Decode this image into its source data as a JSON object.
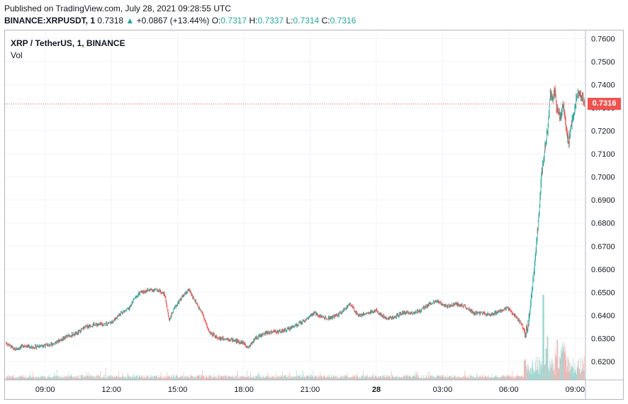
{
  "header": {
    "published": "Published on TradingView.com, July 28, 2021 09:28:55 UTC",
    "symbol": "BINANCE:XRPUSDT, 1",
    "last": "0.7318",
    "change": "+0.0867 (+13.44%)",
    "o_label": "O:",
    "o": "0.7317",
    "h_label": "H:",
    "h": "0.7337",
    "l_label": "L:",
    "l": "0.7314",
    "c_label": "C:",
    "c": "0.7316"
  },
  "legend": {
    "title": "XRP / TetherUS, 1, BINANCE",
    "volume": "Vol"
  },
  "price_tag": "0.7316",
  "colors": {
    "up": "#26a69a",
    "down": "#ef5350",
    "grid": "#f0f3fa",
    "axis": "#b2b5be"
  },
  "chart_data": {
    "type": "candlestick",
    "title": "XRP / TetherUS, 1, BINANCE",
    "xlabel": "",
    "ylabel": "",
    "ylim": [
      0.612,
      0.7635
    ],
    "y_ticks": [
      0.76,
      0.75,
      0.74,
      0.73,
      0.72,
      0.71,
      0.7,
      0.69,
      0.68,
      0.67,
      0.66,
      0.65,
      0.64,
      0.63,
      0.62
    ],
    "y_tick_labels": [
      "0.7600",
      "0.7500",
      "0.7400",
      "0.7300",
      "0.7200",
      "0.7100",
      "0.7000",
      "0.6900",
      "0.6800",
      "0.6700",
      "0.6600",
      "0.6500",
      "0.6400",
      "0.6300",
      "0.6200"
    ],
    "x_range_hours": [
      7.18,
      33.47
    ],
    "x_ticks": [
      {
        "label": "09:00",
        "h": 9
      },
      {
        "label": "12:00",
        "h": 12
      },
      {
        "label": "15:00",
        "h": 15
      },
      {
        "label": "18:00",
        "h": 18
      },
      {
        "label": "21:00",
        "h": 21
      },
      {
        "label": "28",
        "h": 24,
        "bold": true
      },
      {
        "label": "03:00",
        "h": 27
      },
      {
        "label": "06:00",
        "h": 30
      },
      {
        "label": "09:00",
        "h": 33
      }
    ],
    "last_price": 0.7316,
    "close_path": [
      [
        7.2,
        0.628
      ],
      [
        7.6,
        0.625
      ],
      [
        8.0,
        0.627
      ],
      [
        8.4,
        0.626
      ],
      [
        8.8,
        0.627
      ],
      [
        9.2,
        0.627
      ],
      [
        9.6,
        0.629
      ],
      [
        10.0,
        0.631
      ],
      [
        10.4,
        0.632
      ],
      [
        10.8,
        0.635
      ],
      [
        11.2,
        0.636
      ],
      [
        11.6,
        0.636
      ],
      [
        12.0,
        0.637
      ],
      [
        12.4,
        0.641
      ],
      [
        12.8,
        0.643
      ],
      [
        13.0,
        0.647
      ],
      [
        13.3,
        0.65
      ],
      [
        13.7,
        0.651
      ],
      [
        14.1,
        0.651
      ],
      [
        14.4,
        0.649
      ],
      [
        14.6,
        0.638
      ],
      [
        14.9,
        0.644
      ],
      [
        15.2,
        0.648
      ],
      [
        15.5,
        0.651
      ],
      [
        15.9,
        0.644
      ],
      [
        16.1,
        0.641
      ],
      [
        16.4,
        0.633
      ],
      [
        16.8,
        0.63
      ],
      [
        17.2,
        0.63
      ],
      [
        17.6,
        0.629
      ],
      [
        18.0,
        0.628
      ],
      [
        18.2,
        0.626
      ],
      [
        18.5,
        0.63
      ],
      [
        18.9,
        0.632
      ],
      [
        19.3,
        0.633
      ],
      [
        19.7,
        0.633
      ],
      [
        20.0,
        0.634
      ],
      [
        20.4,
        0.636
      ],
      [
        20.8,
        0.638
      ],
      [
        21.2,
        0.641
      ],
      [
        21.6,
        0.639
      ],
      [
        22.0,
        0.639
      ],
      [
        22.4,
        0.641
      ],
      [
        22.8,
        0.645
      ],
      [
        23.2,
        0.64
      ],
      [
        23.6,
        0.641
      ],
      [
        24.0,
        0.642
      ],
      [
        24.4,
        0.639
      ],
      [
        24.8,
        0.639
      ],
      [
        25.2,
        0.641
      ],
      [
        25.6,
        0.641
      ],
      [
        26.0,
        0.642
      ],
      [
        26.4,
        0.645
      ],
      [
        26.8,
        0.646
      ],
      [
        27.2,
        0.644
      ],
      [
        27.6,
        0.645
      ],
      [
        28.0,
        0.644
      ],
      [
        28.4,
        0.641
      ],
      [
        28.8,
        0.641
      ],
      [
        29.2,
        0.64
      ],
      [
        29.6,
        0.642
      ],
      [
        30.0,
        0.643
      ],
      [
        30.3,
        0.64
      ],
      [
        30.6,
        0.636
      ],
      [
        30.75,
        0.632
      ],
      [
        30.9,
        0.636
      ],
      [
        31.05,
        0.648
      ],
      [
        31.2,
        0.663
      ],
      [
        31.35,
        0.68
      ],
      [
        31.5,
        0.7
      ],
      [
        31.6,
        0.708
      ],
      [
        31.7,
        0.716
      ],
      [
        31.8,
        0.721
      ],
      [
        31.9,
        0.737
      ],
      [
        32.0,
        0.733
      ],
      [
        32.1,
        0.738
      ],
      [
        32.2,
        0.73
      ],
      [
        32.35,
        0.726
      ],
      [
        32.5,
        0.731
      ],
      [
        32.65,
        0.719
      ],
      [
        32.75,
        0.715
      ],
      [
        32.85,
        0.722
      ],
      [
        33.0,
        0.729
      ],
      [
        33.15,
        0.737
      ],
      [
        33.3,
        0.735
      ],
      [
        33.45,
        0.732
      ]
    ],
    "volume_note": "Volume bars drawn at bottom; elevated volume after 06:00 on the 28th"
  }
}
